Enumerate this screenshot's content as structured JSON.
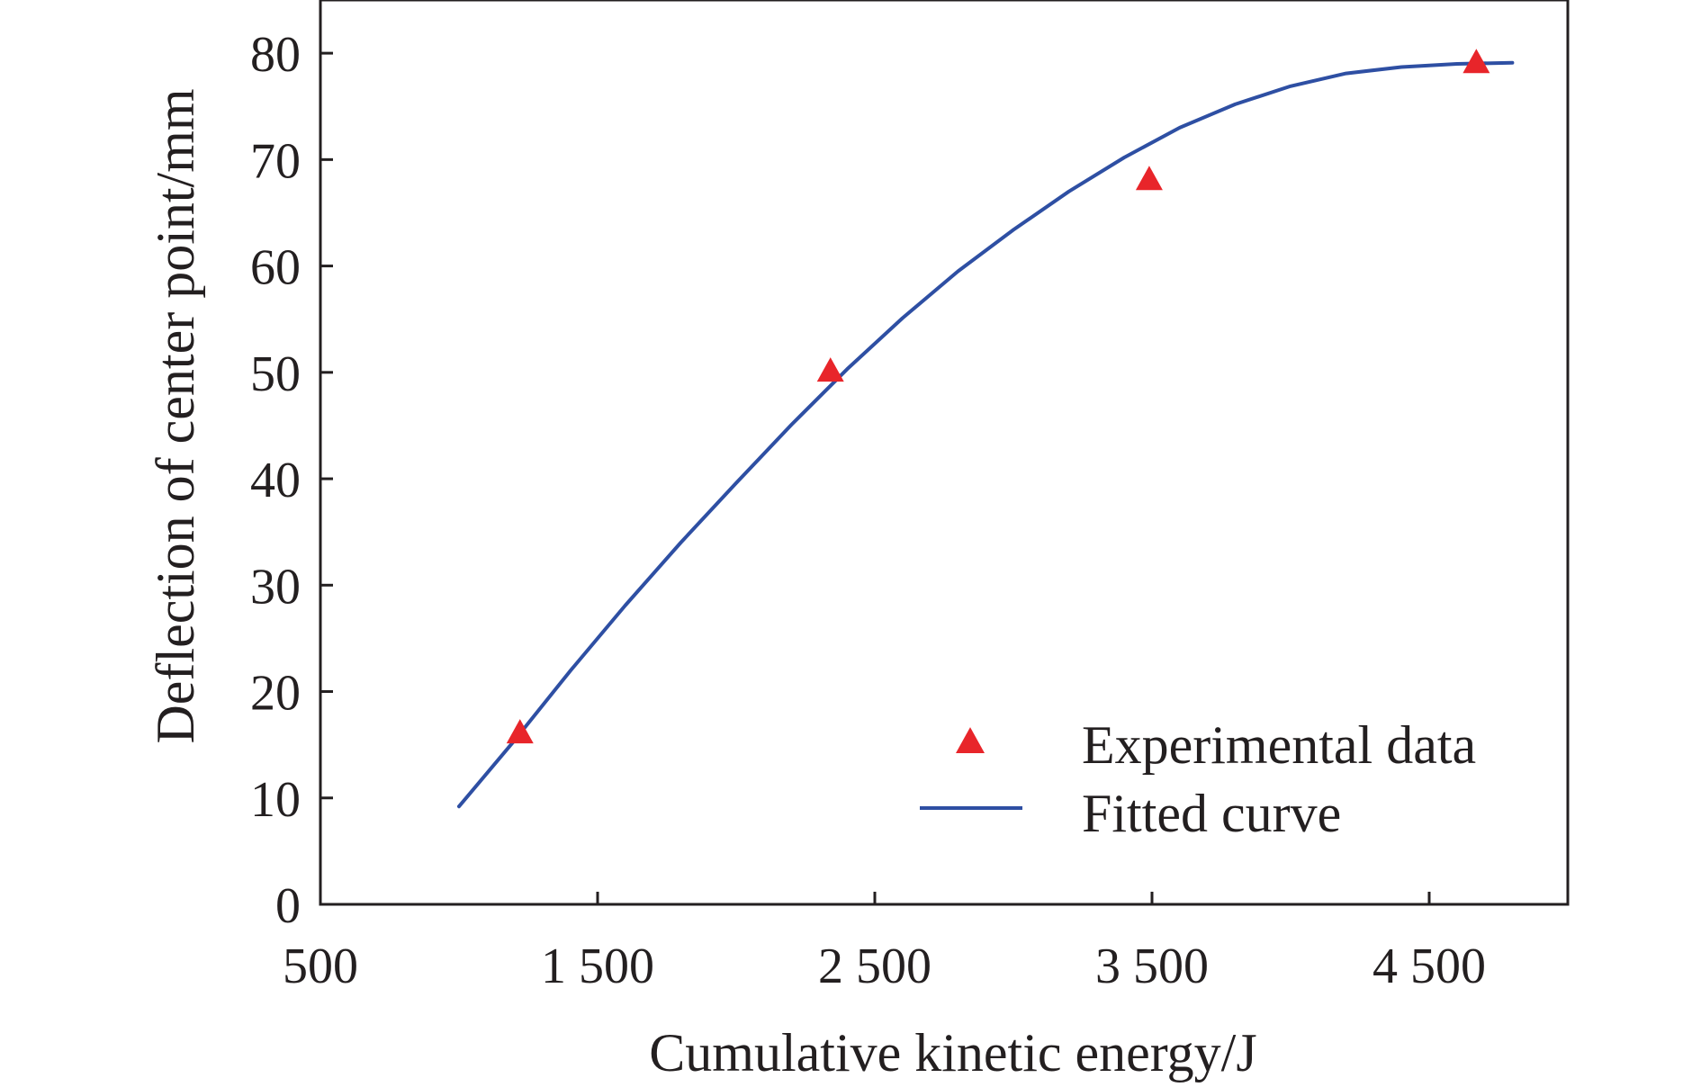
{
  "chart_data": {
    "type": "scatter",
    "title": "",
    "xlabel": "Cumulative kinetic energy/J",
    "ylabel": "Deflection of center point/mm",
    "xlim": [
      500,
      5000
    ],
    "ylim": [
      0,
      85
    ],
    "x_ticks": [
      500,
      1500,
      2500,
      3500,
      4500
    ],
    "x_tick_labels": [
      "500",
      "1 500",
      "2 500",
      "3 500",
      "4 500"
    ],
    "y_ticks": [
      0,
      10,
      20,
      30,
      40,
      50,
      60,
      70,
      80
    ],
    "y_tick_labels": [
      "0",
      "10",
      "20",
      "30",
      "40",
      "50",
      "60",
      "70",
      "80"
    ],
    "grid": false,
    "legend_position": "bottom-right",
    "series": [
      {
        "name": "Experimental data",
        "kind": "scatter",
        "marker": "triangle",
        "color": "#e8252a",
        "x": [
          1220,
          2340,
          3490,
          4670
        ],
        "y": [
          16,
          50,
          68,
          79
        ]
      },
      {
        "name": "Fitted curve",
        "kind": "line",
        "color": "#2e4fa3",
        "x": [
          1000,
          1200,
          1400,
          1600,
          1800,
          2000,
          2200,
          2400,
          2600,
          2800,
          3000,
          3200,
          3400,
          3600,
          3800,
          4000,
          4200,
          4400,
          4600,
          4800
        ],
        "y": [
          9.2,
          15.4,
          21.9,
          28.1,
          34.0,
          39.6,
          45.1,
          50.3,
          55.1,
          59.5,
          63.4,
          67.0,
          70.2,
          73.0,
          75.2,
          76.9,
          78.1,
          78.7,
          79.0,
          79.1
        ]
      }
    ]
  }
}
